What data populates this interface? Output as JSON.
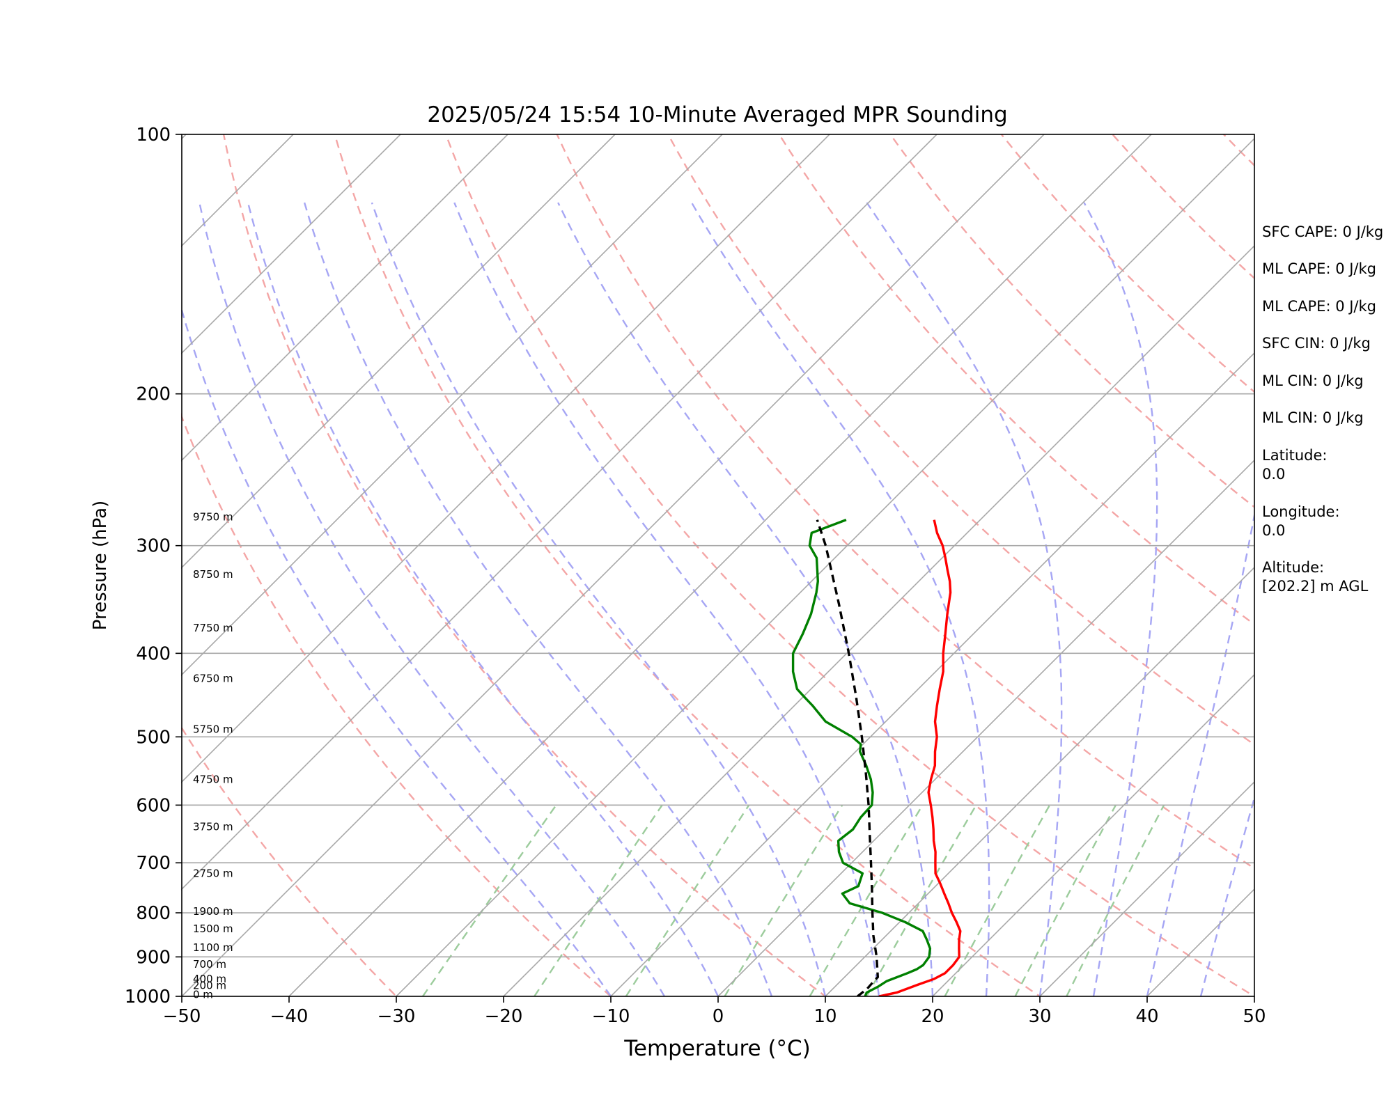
{
  "chart_data": {
    "type": "line",
    "title": "2025/05/24 15:54 10-Minute Averaged MPR Sounding",
    "xlabel": "Temperature (°C)",
    "ylabel": "Pressure (hPa)",
    "xlim": [
      -50,
      50
    ],
    "ylim": [
      1000,
      100
    ],
    "y_scale": "log",
    "grid": true,
    "x_ticks": [
      "−50",
      "−40",
      "−30",
      "−20",
      "−10",
      "0",
      "10",
      "20",
      "30",
      "40",
      "50"
    ],
    "y_ticks": [
      "1000",
      "900",
      "800",
      "700",
      "600",
      "500",
      "400",
      "300",
      "200",
      "100"
    ],
    "height_labels": [
      {
        "pressure": 995,
        "text": "0 m"
      },
      {
        "pressure": 972,
        "text": "200 m"
      },
      {
        "pressure": 955,
        "text": "400 m"
      },
      {
        "pressure": 918,
        "text": "700 m"
      },
      {
        "pressure": 878,
        "text": "1100 m"
      },
      {
        "pressure": 835,
        "text": "1500 m"
      },
      {
        "pressure": 797,
        "text": "1900 m"
      },
      {
        "pressure": 720,
        "text": "2750 m"
      },
      {
        "pressure": 636,
        "text": "3750 m"
      },
      {
        "pressure": 560,
        "text": "4750 m"
      },
      {
        "pressure": 490,
        "text": "5750 m"
      },
      {
        "pressure": 428,
        "text": "6750 m"
      },
      {
        "pressure": 374,
        "text": "7750 m"
      },
      {
        "pressure": 324,
        "text": "8750 m"
      },
      {
        "pressure": 278,
        "text": "9750 m"
      }
    ],
    "series": [
      {
        "key": "temperature",
        "color": "#ff0000",
        "points": [
          [
            1000,
            15.0
          ],
          [
            990,
            16.3
          ],
          [
            970,
            17.5
          ],
          [
            955,
            18.5
          ],
          [
            940,
            19.0
          ],
          [
            920,
            19.0
          ],
          [
            900,
            18.8
          ],
          [
            880,
            18.0
          ],
          [
            860,
            17.2
          ],
          [
            840,
            16.5
          ],
          [
            820,
            15.3
          ],
          [
            800,
            14.0
          ],
          [
            780,
            12.8
          ],
          [
            760,
            11.5
          ],
          [
            740,
            10.2
          ],
          [
            720,
            8.8
          ],
          [
            700,
            7.8
          ],
          [
            680,
            6.8
          ],
          [
            660,
            5.6
          ],
          [
            640,
            4.5
          ],
          [
            620,
            3.3
          ],
          [
            600,
            2.0
          ],
          [
            580,
            0.6
          ],
          [
            560,
            -0.4
          ],
          [
            540,
            -1.3
          ],
          [
            520,
            -2.6
          ],
          [
            500,
            -3.8
          ],
          [
            480,
            -5.4
          ],
          [
            460,
            -6.7
          ],
          [
            440,
            -8.0
          ],
          [
            420,
            -9.3
          ],
          [
            400,
            -11.0
          ],
          [
            380,
            -12.6
          ],
          [
            360,
            -14.3
          ],
          [
            340,
            -16.0
          ],
          [
            330,
            -17.1
          ],
          [
            320,
            -18.4
          ],
          [
            310,
            -19.7
          ],
          [
            300,
            -21.1
          ],
          [
            290,
            -22.8
          ],
          [
            280,
            -24.3
          ]
        ]
      },
      {
        "key": "dewpoint",
        "color": "#008000",
        "points": [
          [
            1000,
            13.7
          ],
          [
            990,
            13.5
          ],
          [
            975,
            14.0
          ],
          [
            960,
            14.3
          ],
          [
            940,
            15.5
          ],
          [
            930,
            16.0
          ],
          [
            920,
            16.2
          ],
          [
            900,
            16.0
          ],
          [
            880,
            15.3
          ],
          [
            860,
            14.2
          ],
          [
            840,
            13.0
          ],
          [
            820,
            10.5
          ],
          [
            800,
            7.5
          ],
          [
            780,
            3.6
          ],
          [
            760,
            2.0
          ],
          [
            745,
            2.8
          ],
          [
            720,
            2.0
          ],
          [
            700,
            -0.8
          ],
          [
            680,
            -2.2
          ],
          [
            660,
            -3.3
          ],
          [
            640,
            -3.0
          ],
          [
            620,
            -3.4
          ],
          [
            600,
            -3.5
          ],
          [
            580,
            -4.6
          ],
          [
            560,
            -6.0
          ],
          [
            540,
            -7.7
          ],
          [
            520,
            -9.6
          ],
          [
            510,
            -10.2
          ],
          [
            500,
            -11.7
          ],
          [
            480,
            -15.6
          ],
          [
            460,
            -18.3
          ],
          [
            450,
            -19.8
          ],
          [
            440,
            -21.3
          ],
          [
            420,
            -23.3
          ],
          [
            400,
            -25.0
          ],
          [
            380,
            -25.9
          ],
          [
            360,
            -27.0
          ],
          [
            340,
            -28.5
          ],
          [
            330,
            -29.4
          ],
          [
            310,
            -31.7
          ],
          [
            300,
            -33.5
          ],
          [
            290,
            -34.5
          ],
          [
            280,
            -32.5
          ]
        ]
      },
      {
        "key": "parcel",
        "color": "#000000",
        "dashed": true,
        "points": [
          [
            1000,
            13.0
          ],
          [
            980,
            13.2
          ],
          [
            960,
            13.1
          ],
          [
            950,
            13.1
          ],
          [
            900,
            11.1
          ],
          [
            850,
            8.8
          ],
          [
            800,
            6.6
          ],
          [
            750,
            4.3
          ],
          [
            700,
            1.8
          ],
          [
            650,
            -0.9
          ],
          [
            600,
            -3.8
          ],
          [
            550,
            -7.1
          ],
          [
            500,
            -10.8
          ],
          [
            450,
            -15.0
          ],
          [
            400,
            -19.8
          ],
          [
            350,
            -25.4
          ],
          [
            300,
            -32.0
          ],
          [
            280,
            -35.2
          ]
        ]
      }
    ],
    "dry_adiabats_theta_k": [
      243.15,
      263.15,
      283.15,
      303.15,
      323.15,
      343.15,
      363.15,
      383.15,
      403.15,
      423.15,
      443.15,
      463.15,
      483.15
    ],
    "moist_adiabats_start_c": [
      -10,
      -5,
      0,
      5,
      10,
      15,
      20,
      25,
      30,
      35,
      40,
      45
    ],
    "mixing_ratio_lines_gkg": [
      0.4,
      1,
      2,
      4,
      7,
      10,
      16,
      24,
      32
    ],
    "colors": {
      "isotherm": "#a8a8a8",
      "isobar": "#a8a8a8",
      "dry_adiabat": "#f4a6a6",
      "moist_adiabat": "#a6a6f4",
      "mixing_ratio": "#9ccc9c"
    }
  },
  "side_panel": [
    "SFC CAPE: 0 J/kg",
    "ML CAPE: 0 J/kg",
    "ML CAPE: 0 J/kg",
    "SFC CIN: 0 J/kg",
    "ML CIN: 0 J/kg",
    "ML CIN: 0 J/kg",
    "Latitude:",
    "0.0",
    "Longitude:",
    "0.0",
    "Altitude:",
    "[202.2] m AGL"
  ]
}
